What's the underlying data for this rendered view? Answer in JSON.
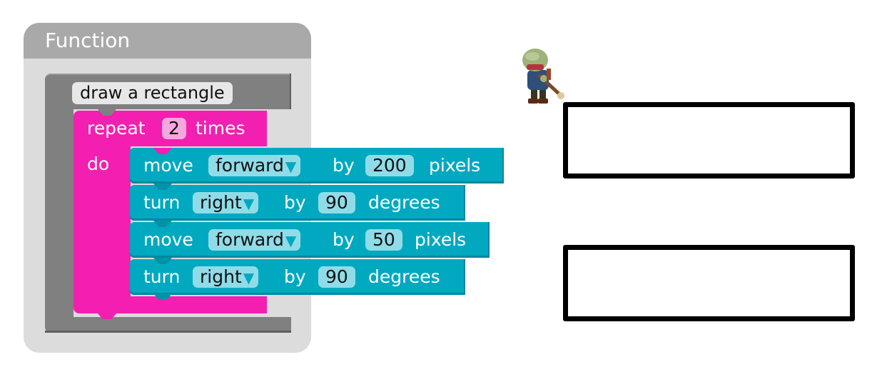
{
  "function_panel": {
    "title": "Function",
    "procedure_name": "draw a rectangle"
  },
  "repeat_block": {
    "label_repeat": "repeat",
    "count": "2",
    "label_times": "times",
    "label_do": "do"
  },
  "statements": [
    {
      "verb": "move",
      "option": "forward",
      "by": "by",
      "value": "200",
      "unit": "pixels"
    },
    {
      "verb": "turn",
      "option": "right",
      "by": "by",
      "value": "90",
      "unit": "degrees"
    },
    {
      "verb": "move",
      "option": "forward",
      "by": "by",
      "value": "50",
      "unit": "pixels"
    },
    {
      "verb": "turn",
      "option": "right",
      "by": "by",
      "value": "90",
      "unit": "degrees"
    }
  ],
  "dropdown_arrow": "▼",
  "colors": {
    "function_category": "#808080",
    "loop_category": "#f21fb0",
    "movement_category": "#00a9c0"
  },
  "icons": {
    "artist": "artist-zombie-icon"
  }
}
